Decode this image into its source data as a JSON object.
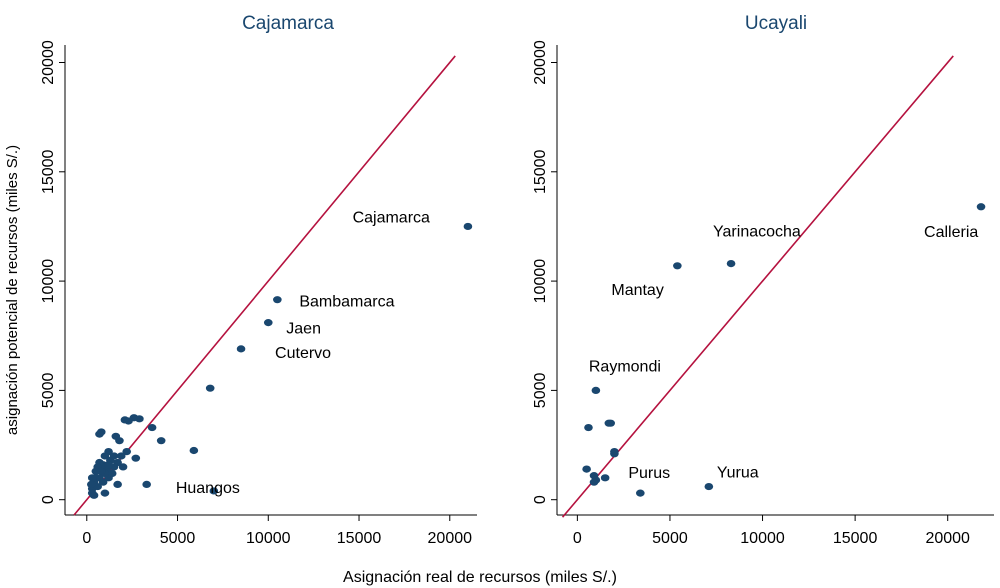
{
  "chart_data": [
    {
      "type": "scatter",
      "title": "Cajamarca",
      "color": "#1a476f",
      "xlim": [
        -1200,
        21500
      ],
      "ylim": [
        -700,
        20800
      ],
      "xticks": [
        0,
        5000,
        10000,
        15000,
        20000
      ],
      "yticks": [
        0,
        5000,
        10000,
        15000,
        20000
      ],
      "reference_line": {
        "color": "#b5123f",
        "range": [
          -700,
          20300
        ]
      },
      "x": [
        21000,
        10500,
        10000,
        8500,
        6800,
        7000,
        5900,
        4100,
        3600,
        3300,
        2900,
        2600,
        2300,
        2100,
        2700,
        2200,
        1800,
        1600,
        1900,
        2000,
        1700,
        1500,
        1700,
        1200,
        1000,
        1300,
        800,
        700,
        1100,
        900,
        1000,
        700,
        600,
        800,
        500,
        400,
        300,
        300,
        400,
        600,
        700,
        900,
        1000,
        1200,
        1400,
        500,
        300,
        250,
        1500,
        1200
      ],
      "y": [
        12500,
        9150,
        8100,
        6900,
        5100,
        400,
        2250,
        2700,
        3300,
        700,
        3700,
        3750,
        3600,
        3650,
        1900,
        2200,
        2700,
        2900,
        2000,
        1500,
        1700,
        1500,
        700,
        2200,
        2000,
        1800,
        3100,
        3000,
        1400,
        1600,
        1200,
        1700,
        1500,
        1300,
        1000,
        800,
        500,
        300,
        200,
        600,
        1000,
        800,
        300,
        1000,
        1200,
        1300,
        1000,
        700,
        2000,
        1600
      ],
      "labels": [
        "Cajamarca",
        "Bambamarca",
        "Jaen",
        "Cutervo",
        null,
        "Huangos",
        null,
        null,
        null,
        null,
        null,
        null,
        null,
        null,
        null,
        null,
        null,
        null,
        null,
        null,
        null,
        null,
        null,
        null,
        null,
        null,
        null,
        null,
        null,
        null,
        null,
        null,
        null,
        null,
        null,
        null,
        null,
        null,
        null,
        null,
        null,
        null,
        null,
        null,
        null,
        null,
        null,
        null,
        null,
        null
      ]
    },
    {
      "type": "scatter",
      "title": "Ucayali",
      "color": "#1a476f",
      "xlim": [
        -1100,
        22500
      ],
      "ylim": [
        -700,
        20800
      ],
      "xticks": [
        0,
        5000,
        10000,
        15000,
        20000
      ],
      "yticks": [
        0,
        5000,
        10000,
        15000,
        20000
      ],
      "reference_line": {
        "color": "#b5123f",
        "range": [
          -800,
          20300
        ]
      },
      "x": [
        21800,
        8300,
        5400,
        1000,
        1700,
        1800,
        600,
        2000,
        2000,
        500,
        900,
        1000,
        900,
        1500,
        3400,
        7100
      ],
      "y": [
        13400,
        10800,
        10700,
        5000,
        3500,
        3500,
        3300,
        2200,
        2100,
        1400,
        1100,
        900,
        800,
        1000,
        300,
        600
      ],
      "labels": [
        "Calleria",
        "Yarinacocha",
        "Mantay",
        "Raymondi",
        null,
        null,
        null,
        null,
        null,
        null,
        null,
        null,
        null,
        null,
        "Purus",
        "Yurua"
      ]
    }
  ],
  "xlabel": "Asignación real de recursos (miles S/.)",
  "ylabel": "asignación potencial de recursos (miles S/.)"
}
